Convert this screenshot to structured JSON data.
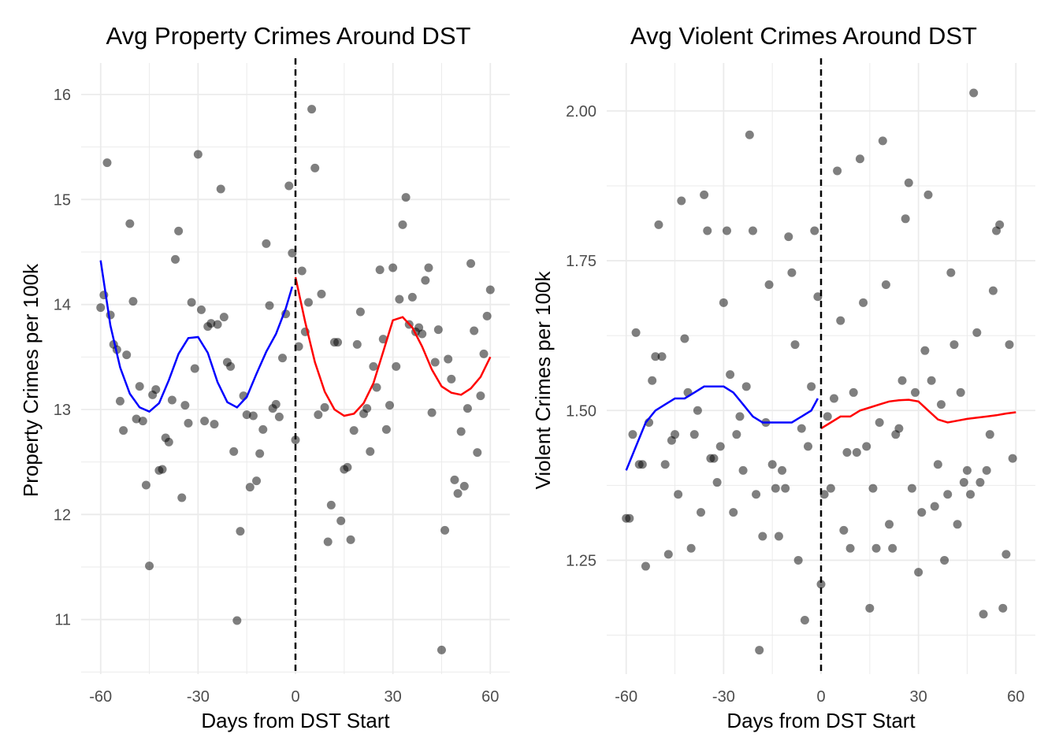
{
  "chart_data": [
    {
      "type": "scatter",
      "title": "Avg Property Crimes Around DST",
      "xlabel": "Days from DST Start",
      "ylabel": "Property Crimes per 100k",
      "xlim": [
        -66,
        66
      ],
      "ylim": [
        10.48,
        16.3
      ],
      "xticks": [
        -60,
        -30,
        0,
        30,
        60
      ],
      "xtick_labels": [
        "-60",
        "-30",
        "0",
        "30",
        "60"
      ],
      "yticks": [
        11,
        12,
        13,
        14,
        15,
        16
      ],
      "ytick_labels": [
        "11",
        "12",
        "13",
        "14",
        "15",
        "16"
      ],
      "grid": true,
      "cutoff_x": 0,
      "points": [
        [
          -60,
          13.97
        ],
        [
          -59,
          14.09
        ],
        [
          -58,
          15.35
        ],
        [
          -57,
          13.9
        ],
        [
          -56,
          13.62
        ],
        [
          -55,
          13.57
        ],
        [
          -54,
          13.08
        ],
        [
          -53,
          12.8
        ],
        [
          -52,
          13.52
        ],
        [
          -51,
          14.77
        ],
        [
          -50,
          14.03
        ],
        [
          -49,
          12.91
        ],
        [
          -48,
          13.22
        ],
        [
          -47,
          12.89
        ],
        [
          -46,
          12.28
        ],
        [
          -45,
          11.51
        ],
        [
          -44,
          13.14
        ],
        [
          -43,
          13.19
        ],
        [
          -42,
          12.42
        ],
        [
          -41,
          12.43
        ],
        [
          -40,
          12.73
        ],
        [
          -39,
          12.69
        ],
        [
          -38,
          13.09
        ],
        [
          -37,
          14.43
        ],
        [
          -36,
          14.7
        ],
        [
          -35,
          12.16
        ],
        [
          -34,
          13.04
        ],
        [
          -33,
          12.87
        ],
        [
          -32,
          14.02
        ],
        [
          -31,
          13.39
        ],
        [
          -30,
          15.43
        ],
        [
          -29,
          13.95
        ],
        [
          -28,
          12.89
        ],
        [
          -27,
          13.79
        ],
        [
          -26,
          13.82
        ],
        [
          -25,
          12.86
        ],
        [
          -24,
          13.81
        ],
        [
          -23,
          15.1
        ],
        [
          -22,
          13.88
        ],
        [
          -21,
          13.45
        ],
        [
          -20,
          13.41
        ],
        [
          -19,
          12.6
        ],
        [
          -18,
          10.99
        ],
        [
          -17,
          11.84
        ],
        [
          -16,
          13.13
        ],
        [
          -15,
          12.95
        ],
        [
          -14,
          12.26
        ],
        [
          -13,
          12.94
        ],
        [
          -12,
          12.32
        ],
        [
          -11,
          12.58
        ],
        [
          -10,
          12.81
        ],
        [
          -9,
          14.58
        ],
        [
          -8,
          13.99
        ],
        [
          -7,
          13.01
        ],
        [
          -6,
          13.05
        ],
        [
          -5,
          12.93
        ],
        [
          -4,
          13.49
        ],
        [
          -3,
          13.91
        ],
        [
          -2,
          15.13
        ],
        [
          -1,
          14.49
        ],
        [
          0,
          12.71
        ],
        [
          1,
          13.6
        ],
        [
          2,
          14.32
        ],
        [
          3,
          13.74
        ],
        [
          4,
          14.02
        ],
        [
          5,
          15.86
        ],
        [
          6,
          15.3
        ],
        [
          7,
          12.95
        ],
        [
          8,
          14.1
        ],
        [
          9,
          13.02
        ],
        [
          10,
          11.74
        ],
        [
          11,
          12.09
        ],
        [
          12,
          13.64
        ],
        [
          13,
          13.64
        ],
        [
          14,
          11.94
        ],
        [
          15,
          12.43
        ],
        [
          16,
          12.45
        ],
        [
          17,
          11.76
        ],
        [
          18,
          12.8
        ],
        [
          19,
          13.62
        ],
        [
          20,
          13.93
        ],
        [
          21,
          12.96
        ],
        [
          22,
          13.01
        ],
        [
          23,
          12.6
        ],
        [
          24,
          13.41
        ],
        [
          25,
          13.21
        ],
        [
          26,
          14.33
        ],
        [
          27,
          13.67
        ],
        [
          28,
          12.81
        ],
        [
          29,
          13.04
        ],
        [
          30,
          14.35
        ],
        [
          31,
          13.41
        ],
        [
          32,
          14.05
        ],
        [
          33,
          14.76
        ],
        [
          34,
          15.02
        ],
        [
          35,
          13.81
        ],
        [
          36,
          14.07
        ],
        [
          37,
          13.74
        ],
        [
          38,
          13.78
        ],
        [
          39,
          13.72
        ],
        [
          40,
          14.23
        ],
        [
          41,
          14.35
        ],
        [
          42,
          12.97
        ],
        [
          43,
          13.45
        ],
        [
          44,
          13.76
        ],
        [
          45,
          10.71
        ],
        [
          46,
          11.85
        ],
        [
          47,
          13.48
        ],
        [
          48,
          13.29
        ],
        [
          49,
          12.33
        ],
        [
          50,
          12.2
        ],
        [
          51,
          12.79
        ],
        [
          52,
          12.27
        ],
        [
          53,
          13.01
        ],
        [
          54,
          14.39
        ],
        [
          55,
          13.75
        ],
        [
          56,
          12.59
        ],
        [
          57,
          13.13
        ],
        [
          58,
          13.53
        ],
        [
          59,
          13.89
        ],
        [
          60,
          14.14
        ]
      ],
      "series": [
        {
          "color": "#0000ff",
          "points": [
            [
              -60,
              14.42
            ],
            [
              -57,
              13.8
            ],
            [
              -54,
              13.4
            ],
            [
              -51,
              13.15
            ],
            [
              -48,
              13.02
            ],
            [
              -45,
              12.98
            ],
            [
              -42,
              13.06
            ],
            [
              -39,
              13.28
            ],
            [
              -36,
              13.53
            ],
            [
              -33,
              13.68
            ],
            [
              -30,
              13.69
            ],
            [
              -27,
              13.54
            ],
            [
              -24,
              13.26
            ],
            [
              -21,
              13.07
            ],
            [
              -18,
              13.02
            ],
            [
              -15,
              13.12
            ],
            [
              -12,
              13.34
            ],
            [
              -9,
              13.55
            ],
            [
              -6,
              13.72
            ],
            [
              -3,
              13.96
            ],
            [
              -1,
              14.17
            ]
          ]
        },
        {
          "color": "#ff0000",
          "points": [
            [
              0,
              14.26
            ],
            [
              3,
              13.83
            ],
            [
              6,
              13.45
            ],
            [
              9,
              13.17
            ],
            [
              12,
              13.0
            ],
            [
              15,
              12.94
            ],
            [
              18,
              12.96
            ],
            [
              21,
              13.06
            ],
            [
              24,
              13.25
            ],
            [
              27,
              13.55
            ],
            [
              30,
              13.85
            ],
            [
              33,
              13.88
            ],
            [
              36,
              13.78
            ],
            [
              39,
              13.6
            ],
            [
              42,
              13.38
            ],
            [
              45,
              13.22
            ],
            [
              48,
              13.16
            ],
            [
              51,
              13.14
            ],
            [
              54,
              13.2
            ],
            [
              57,
              13.31
            ],
            [
              60,
              13.5
            ]
          ]
        }
      ]
    },
    {
      "type": "scatter",
      "title": "Avg Violent Crimes Around DST",
      "xlabel": "Days from DST Start",
      "ylabel": "Violent Crimes per 100k",
      "xlim": [
        -66,
        66
      ],
      "ylim": [
        1.06,
        2.08
      ],
      "xticks": [
        -60,
        -30,
        0,
        30,
        60
      ],
      "xtick_labels": [
        "-60",
        "-30",
        "0",
        "30",
        "60"
      ],
      "yticks": [
        1.25,
        1.5,
        1.75,
        2.0
      ],
      "ytick_labels": [
        "1.25",
        "1.50",
        "1.75",
        "2.00"
      ],
      "grid": true,
      "cutoff_x": 0,
      "points": [
        [
          -60,
          1.32
        ],
        [
          -59,
          1.32
        ],
        [
          -58,
          1.46
        ],
        [
          -57,
          1.63
        ],
        [
          -56,
          1.41
        ],
        [
          -55,
          1.41
        ],
        [
          -54,
          1.24
        ],
        [
          -53,
          1.48
        ],
        [
          -52,
          1.55
        ],
        [
          -51,
          1.59
        ],
        [
          -50,
          1.81
        ],
        [
          -49,
          1.59
        ],
        [
          -48,
          1.41
        ],
        [
          -47,
          1.26
        ],
        [
          -46,
          1.45
        ],
        [
          -45,
          1.46
        ],
        [
          -44,
          1.36
        ],
        [
          -43,
          1.85
        ],
        [
          -42,
          1.62
        ],
        [
          -41,
          1.53
        ],
        [
          -40,
          1.27
        ],
        [
          -39,
          1.46
        ],
        [
          -38,
          1.5
        ],
        [
          -37,
          1.33
        ],
        [
          -36,
          1.86
        ],
        [
          -35,
          1.8
        ],
        [
          -34,
          1.42
        ],
        [
          -33,
          1.42
        ],
        [
          -32,
          1.38
        ],
        [
          -31,
          1.44
        ],
        [
          -30,
          1.68
        ],
        [
          -29,
          1.8
        ],
        [
          -28,
          1.56
        ],
        [
          -27,
          1.33
        ],
        [
          -26,
          1.46
        ],
        [
          -25,
          1.49
        ],
        [
          -24,
          1.4
        ],
        [
          -23,
          1.54
        ],
        [
          -22,
          1.96
        ],
        [
          -21,
          1.8
        ],
        [
          -20,
          1.36
        ],
        [
          -19,
          1.1
        ],
        [
          -18,
          1.29
        ],
        [
          -17,
          1.48
        ],
        [
          -16,
          1.71
        ],
        [
          -15,
          1.41
        ],
        [
          -14,
          1.37
        ],
        [
          -13,
          1.29
        ],
        [
          -12,
          1.4
        ],
        [
          -11,
          1.37
        ],
        [
          -10,
          1.79
        ],
        [
          -9,
          1.73
        ],
        [
          -8,
          1.61
        ],
        [
          -7,
          1.25
        ],
        [
          -6,
          1.47
        ],
        [
          -5,
          1.15
        ],
        [
          -4,
          1.44
        ],
        [
          -3,
          1.54
        ],
        [
          -2,
          1.8
        ],
        [
          -1,
          1.69
        ],
        [
          0,
          1.21
        ],
        [
          1,
          1.36
        ],
        [
          2,
          1.49
        ],
        [
          3,
          1.37
        ],
        [
          4,
          1.52
        ],
        [
          5,
          1.9
        ],
        [
          6,
          1.65
        ],
        [
          7,
          1.3
        ],
        [
          8,
          1.43
        ],
        [
          9,
          1.27
        ],
        [
          10,
          1.53
        ],
        [
          11,
          1.43
        ],
        [
          12,
          1.92
        ],
        [
          13,
          1.68
        ],
        [
          14,
          1.44
        ],
        [
          15,
          1.17
        ],
        [
          16,
          1.37
        ],
        [
          17,
          1.27
        ],
        [
          18,
          1.48
        ],
        [
          19,
          1.95
        ],
        [
          20,
          1.71
        ],
        [
          21,
          1.31
        ],
        [
          22,
          1.27
        ],
        [
          23,
          1.46
        ],
        [
          24,
          1.47
        ],
        [
          25,
          1.55
        ],
        [
          26,
          1.82
        ],
        [
          27,
          1.88
        ],
        [
          28,
          1.37
        ],
        [
          29,
          1.53
        ],
        [
          30,
          1.23
        ],
        [
          31,
          1.33
        ],
        [
          32,
          1.6
        ],
        [
          33,
          1.86
        ],
        [
          34,
          1.55
        ],
        [
          35,
          1.34
        ],
        [
          36,
          1.41
        ],
        [
          37,
          1.51
        ],
        [
          38,
          1.25
        ],
        [
          39,
          1.36
        ],
        [
          40,
          1.73
        ],
        [
          41,
          1.61
        ],
        [
          42,
          1.31
        ],
        [
          43,
          1.53
        ],
        [
          44,
          1.38
        ],
        [
          45,
          1.4
        ],
        [
          46,
          1.36
        ],
        [
          47,
          2.03
        ],
        [
          48,
          1.63
        ],
        [
          49,
          1.38
        ],
        [
          50,
          1.16
        ],
        [
          51,
          1.4
        ],
        [
          52,
          1.46
        ],
        [
          53,
          1.7
        ],
        [
          54,
          1.8
        ],
        [
          55,
          1.81
        ],
        [
          56,
          1.17
        ],
        [
          57,
          1.26
        ],
        [
          58,
          1.61
        ],
        [
          59,
          1.42
        ]
      ],
      "series": [
        {
          "color": "#0000ff",
          "points": [
            [
              -60,
              1.4
            ],
            [
              -57,
              1.44
            ],
            [
              -54,
              1.48
            ],
            [
              -51,
              1.5
            ],
            [
              -48,
              1.51
            ],
            [
              -45,
              1.52
            ],
            [
              -42,
              1.52
            ],
            [
              -39,
              1.53
            ],
            [
              -36,
              1.54
            ],
            [
              -33,
              1.54
            ],
            [
              -30,
              1.54
            ],
            [
              -27,
              1.53
            ],
            [
              -24,
              1.51
            ],
            [
              -21,
              1.49
            ],
            [
              -18,
              1.48
            ],
            [
              -15,
              1.48
            ],
            [
              -12,
              1.48
            ],
            [
              -9,
              1.48
            ],
            [
              -6,
              1.49
            ],
            [
              -3,
              1.5
            ],
            [
              -1,
              1.52
            ]
          ]
        },
        {
          "color": "#ff0000",
          "points": [
            [
              0,
              1.47
            ],
            [
              3,
              1.48
            ],
            [
              6,
              1.49
            ],
            [
              9,
              1.49
            ],
            [
              12,
              1.5
            ],
            [
              15,
              1.505
            ],
            [
              18,
              1.51
            ],
            [
              21,
              1.515
            ],
            [
              24,
              1.517
            ],
            [
              27,
              1.518
            ],
            [
              30,
              1.515
            ],
            [
              33,
              1.5
            ],
            [
              36,
              1.485
            ],
            [
              39,
              1.48
            ],
            [
              42,
              1.483
            ],
            [
              45,
              1.486
            ],
            [
              48,
              1.488
            ],
            [
              51,
              1.49
            ],
            [
              54,
              1.492
            ],
            [
              57,
              1.495
            ],
            [
              60,
              1.497
            ]
          ]
        }
      ]
    }
  ]
}
